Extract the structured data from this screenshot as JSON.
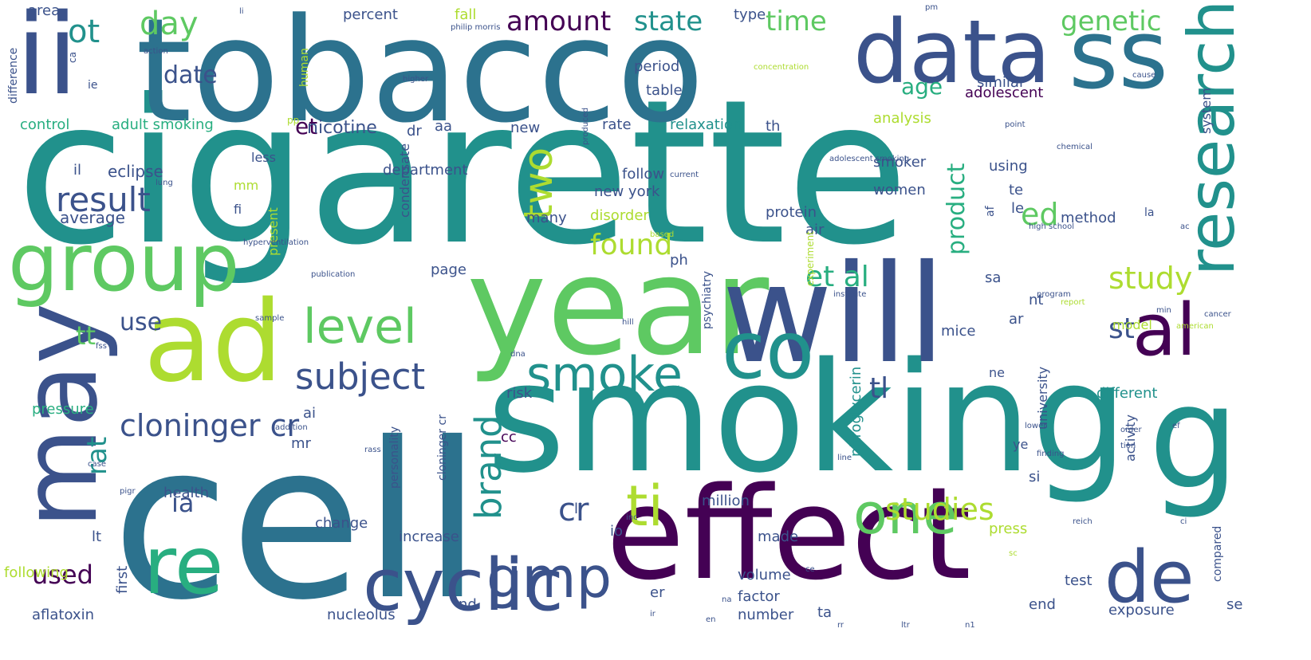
{
  "palette": {
    "dark_purple": "#440154",
    "indigo": "#472d7b",
    "slate_blue": "#3b528b",
    "steel_blue": "#2c728e",
    "teal": "#21918c",
    "green_teal": "#28ae80",
    "green": "#5ec962",
    "lime": "#addc30",
    "yellow": "#fde725"
  },
  "words": [
    {
      "text": "cigarette",
      "color": "#21918c",
      "orientation": "horizontal"
    },
    {
      "text": "cell",
      "color": "#2c728e",
      "orientation": "horizontal"
    },
    {
      "text": "smoking",
      "color": "#21918c",
      "orientation": "horizontal"
    },
    {
      "text": "tobacco",
      "color": "#2c728e",
      "orientation": "horizontal"
    },
    {
      "text": "effect",
      "color": "#440154",
      "orientation": "horizontal"
    },
    {
      "text": "year",
      "color": "#5ec962",
      "orientation": "horizontal"
    },
    {
      "text": "will",
      "color": "#3b528b",
      "orientation": "horizontal"
    },
    {
      "text": "ii",
      "color": "#3b528b",
      "orientation": "horizontal"
    },
    {
      "text": "ad",
      "color": "#addc30",
      "orientation": "horizontal"
    },
    {
      "text": "data",
      "color": "#3b528b",
      "orientation": "horizontal"
    },
    {
      "text": "ss",
      "color": "#2c728e",
      "orientation": "horizontal"
    },
    {
      "text": "may",
      "color": "#3b528b",
      "orientation": "vertical"
    },
    {
      "text": "group",
      "color": "#5ec962",
      "orientation": "horizontal"
    },
    {
      "text": "co",
      "color": "#21918c",
      "orientation": "horizontal"
    },
    {
      "text": "re",
      "color": "#28ae80",
      "orientation": "horizontal"
    },
    {
      "text": "cyclic",
      "color": "#3b528b",
      "orientation": "horizontal"
    },
    {
      "text": "de",
      "color": "#3b528b",
      "orientation": "horizontal"
    },
    {
      "text": "al",
      "color": "#440154",
      "orientation": "horizontal"
    },
    {
      "text": "g",
      "color": "#21918c",
      "orientation": "horizontal"
    },
    {
      "text": "research",
      "color": "#21918c",
      "orientation": "vertical"
    },
    {
      "text": "smoke",
      "color": "#21918c",
      "orientation": "horizontal"
    },
    {
      "text": "level",
      "color": "#5ec962",
      "orientation": "horizontal"
    },
    {
      "text": "one",
      "color": "#5ec962",
      "orientation": "horizontal"
    },
    {
      "text": "ti",
      "color": "#addc30",
      "orientation": "horizontal"
    },
    {
      "text": "gmp",
      "color": "#3b528b",
      "orientation": "horizontal"
    },
    {
      "text": "two",
      "color": "#addc30",
      "orientation": "vertical"
    },
    {
      "text": "subject",
      "color": "#3b528b",
      "orientation": "horizontal"
    },
    {
      "text": "brand",
      "color": "#21918c",
      "orientation": "vertical"
    },
    {
      "text": "result",
      "color": "#3b528b",
      "orientation": "horizontal"
    },
    {
      "text": "cloninger cr",
      "color": "#3b528b",
      "orientation": "horizontal"
    },
    {
      "text": "studies",
      "color": "#addc30",
      "orientation": "horizontal"
    },
    {
      "text": "study",
      "color": "#addc30",
      "orientation": "horizontal"
    },
    {
      "text": "et al",
      "color": "#28ae80",
      "orientation": "horizontal"
    },
    {
      "text": "st",
      "color": "#3b528b",
      "orientation": "horizontal"
    },
    {
      "text": "tl",
      "color": "#3b528b",
      "orientation": "horizontal"
    },
    {
      "text": "ed",
      "color": "#5ec962",
      "orientation": "horizontal"
    },
    {
      "text": "found",
      "color": "#addc30",
      "orientation": "horizontal"
    },
    {
      "text": "product",
      "color": "#28ae80",
      "orientation": "vertical"
    },
    {
      "text": "genetic",
      "color": "#5ec962",
      "orientation": "horizontal"
    },
    {
      "text": "amount",
      "color": "#440154",
      "orientation": "horizontal"
    },
    {
      "text": "state",
      "color": "#21918c",
      "orientation": "horizontal"
    },
    {
      "text": "time",
      "color": "#5ec962",
      "orientation": "horizontal"
    },
    {
      "text": "day",
      "color": "#5ec962",
      "orientation": "horizontal"
    },
    {
      "text": "ot",
      "color": "#21918c",
      "orientation": "horizontal"
    },
    {
      "text": "date",
      "color": "#3b528b",
      "orientation": "horizontal"
    },
    {
      "text": "age",
      "color": "#28ae80",
      "orientation": "horizontal"
    },
    {
      "text": "et",
      "color": "#440154",
      "orientation": "horizontal"
    },
    {
      "text": "use",
      "color": "#3b528b",
      "orientation": "horizontal"
    },
    {
      "text": "tt",
      "color": "#5ec962",
      "orientation": "horizontal"
    },
    {
      "text": "rat",
      "color": "#21918c",
      "orientation": "vertical"
    },
    {
      "text": "ia",
      "color": "#3b528b",
      "orientation": "horizontal"
    },
    {
      "text": "cr",
      "color": "#3b528b",
      "orientation": "horizontal"
    },
    {
      "text": "used",
      "color": "#440154",
      "orientation": "horizontal"
    },
    {
      "text": "nicotine",
      "color": "#3b528b",
      "orientation": "horizontal"
    },
    {
      "text": "adult smoking",
      "color": "#28ae80",
      "orientation": "horizontal"
    },
    {
      "text": "control",
      "color": "#28ae80",
      "orientation": "horizontal"
    },
    {
      "text": "eclipse",
      "color": "#3b528b",
      "orientation": "horizontal"
    },
    {
      "text": "average",
      "color": "#3b528b",
      "orientation": "horizontal"
    },
    {
      "text": "area",
      "color": "#3b528b",
      "orientation": "horizontal"
    },
    {
      "text": "percent",
      "color": "#3b528b",
      "orientation": "horizontal"
    },
    {
      "text": "fall",
      "color": "#addc30",
      "orientation": "horizontal"
    },
    {
      "text": "type",
      "color": "#3b528b",
      "orientation": "horizontal"
    },
    {
      "text": "similar",
      "color": "#3b528b",
      "orientation": "horizontal"
    },
    {
      "text": "period",
      "color": "#3b528b",
      "orientation": "horizontal"
    },
    {
      "text": "table",
      "color": "#3b528b",
      "orientation": "horizontal"
    },
    {
      "text": "adolescent",
      "color": "#440154",
      "orientation": "horizontal"
    },
    {
      "text": "rate",
      "color": "#3b528b",
      "orientation": "horizontal"
    },
    {
      "text": "relaxation",
      "color": "#21918c",
      "orientation": "horizontal"
    },
    {
      "text": "analysis",
      "color": "#addc30",
      "orientation": "horizontal"
    },
    {
      "text": "new",
      "color": "#3b528b",
      "orientation": "horizontal"
    },
    {
      "text": "aa",
      "color": "#3b528b",
      "orientation": "horizontal"
    },
    {
      "text": "dr",
      "color": "#3b528b",
      "orientation": "horizontal"
    },
    {
      "text": "th",
      "color": "#3b528b",
      "orientation": "horizontal"
    },
    {
      "text": "department",
      "color": "#3b528b",
      "orientation": "horizontal"
    },
    {
      "text": "follow",
      "color": "#3b528b",
      "orientation": "horizontal"
    },
    {
      "text": "new york",
      "color": "#3b528b",
      "orientation": "horizontal"
    },
    {
      "text": "smoker",
      "color": "#3b528b",
      "orientation": "horizontal"
    },
    {
      "text": "women",
      "color": "#3b528b",
      "orientation": "horizontal"
    },
    {
      "text": "using",
      "color": "#3b528b",
      "orientation": "horizontal"
    },
    {
      "text": "te",
      "color": "#3b528b",
      "orientation": "horizontal"
    },
    {
      "text": "le",
      "color": "#3b528b",
      "orientation": "horizontal"
    },
    {
      "text": "protein",
      "color": "#3b528b",
      "orientation": "horizontal"
    },
    {
      "text": "method",
      "color": "#3b528b",
      "orientation": "horizontal"
    },
    {
      "text": "disorder",
      "color": "#addc30",
      "orientation": "horizontal"
    },
    {
      "text": "many",
      "color": "#3b528b",
      "orientation": "horizontal"
    },
    {
      "text": "ph",
      "color": "#3b528b",
      "orientation": "horizontal"
    },
    {
      "text": "less",
      "color": "#3b528b",
      "orientation": "horizontal"
    },
    {
      "text": "il",
      "color": "#3b528b",
      "orientation": "horizontal"
    },
    {
      "text": "mm",
      "color": "#addc30",
      "orientation": "horizontal"
    },
    {
      "text": "fi",
      "color": "#3b528b",
      "orientation": "horizontal"
    },
    {
      "text": "condensate",
      "color": "#3b528b",
      "orientation": "vertical"
    },
    {
      "text": "present",
      "color": "#addc30",
      "orientation": "vertical"
    },
    {
      "text": "air",
      "color": "#3b528b",
      "orientation": "horizontal"
    },
    {
      "text": "page",
      "color": "#3b528b",
      "orientation": "horizontal"
    },
    {
      "text": "psychiatry",
      "color": "#3b528b",
      "orientation": "vertical"
    },
    {
      "text": "experiment",
      "color": "#addc30",
      "orientation": "vertical"
    },
    {
      "text": "nt",
      "color": "#3b528b",
      "orientation": "horizontal"
    },
    {
      "text": "ar",
      "color": "#3b528b",
      "orientation": "horizontal"
    },
    {
      "text": "mice",
      "color": "#3b528b",
      "orientation": "horizontal"
    },
    {
      "text": "model",
      "color": "#addc30",
      "orientation": "horizontal"
    },
    {
      "text": "sa",
      "color": "#3b528b",
      "orientation": "horizontal"
    },
    {
      "text": "pressure",
      "color": "#28ae80",
      "orientation": "horizontal"
    },
    {
      "text": "ai",
      "color": "#3b528b",
      "orientation": "horizontal"
    },
    {
      "text": "mr",
      "color": "#3b528b",
      "orientation": "horizontal"
    },
    {
      "text": "risk",
      "color": "#3b528b",
      "orientation": "horizontal"
    },
    {
      "text": "nitroglycerin",
      "color": "#21918c",
      "orientation": "vertical"
    },
    {
      "text": "different",
      "color": "#21918c",
      "orientation": "horizontal"
    },
    {
      "text": "university",
      "color": "#3b528b",
      "orientation": "vertical"
    },
    {
      "text": "activity",
      "color": "#3b528b",
      "orientation": "vertical"
    },
    {
      "text": "ne",
      "color": "#3b528b",
      "orientation": "horizontal"
    },
    {
      "text": "si",
      "color": "#3b528b",
      "orientation": "horizontal"
    },
    {
      "text": "ye",
      "color": "#3b528b",
      "orientation": "horizontal"
    },
    {
      "text": "cc",
      "color": "#440154",
      "orientation": "horizontal"
    },
    {
      "text": "cloninger cr",
      "color": "#3b528b",
      "orientation": "vertical"
    },
    {
      "text": "personality",
      "color": "#3b528b",
      "orientation": "vertical"
    },
    {
      "text": "health",
      "color": "#3b528b",
      "orientation": "horizontal"
    },
    {
      "text": "lt",
      "color": "#3b528b",
      "orientation": "horizontal"
    },
    {
      "text": "million",
      "color": "#3b528b",
      "orientation": "horizontal"
    },
    {
      "text": "change",
      "color": "#3b528b",
      "orientation": "horizontal"
    },
    {
      "text": "increase",
      "color": "#3b528b",
      "orientation": "horizontal"
    },
    {
      "text": "press",
      "color": "#addc30",
      "orientation": "horizontal"
    },
    {
      "text": "made",
      "color": "#3b528b",
      "orientation": "horizontal"
    },
    {
      "text": "io",
      "color": "#3b528b",
      "orientation": "horizontal"
    },
    {
      "text": "ll",
      "color": "#3b528b",
      "orientation": "horizontal"
    },
    {
      "text": "following",
      "color": "#addc30",
      "orientation": "horizontal"
    },
    {
      "text": "first",
      "color": "#3b528b",
      "orientation": "vertical"
    },
    {
      "text": "aflatoxin",
      "color": "#3b528b",
      "orientation": "horizontal"
    },
    {
      "text": "nucleolus",
      "color": "#3b528b",
      "orientation": "horizontal"
    },
    {
      "text": "nd",
      "color": "#3b528b",
      "orientation": "horizontal"
    },
    {
      "text": "volume",
      "color": "#3b528b",
      "orientation": "horizontal"
    },
    {
      "text": "factor",
      "color": "#3b528b",
      "orientation": "horizontal"
    },
    {
      "text": "number",
      "color": "#3b528b",
      "orientation": "horizontal"
    },
    {
      "text": "ta",
      "color": "#3b528b",
      "orientation": "horizontal"
    },
    {
      "text": "er",
      "color": "#3b528b",
      "orientation": "horizontal"
    },
    {
      "text": "test",
      "color": "#3b528b",
      "orientation": "horizontal"
    },
    {
      "text": "end",
      "color": "#3b528b",
      "orientation": "horizontal"
    },
    {
      "text": "exposure",
      "color": "#3b528b",
      "orientation": "horizontal"
    },
    {
      "text": "compared",
      "color": "#3b528b",
      "orientation": "vertical"
    },
    {
      "text": "se",
      "color": "#3b528b",
      "orientation": "horizontal"
    },
    {
      "text": "difference",
      "color": "#3b528b",
      "orientation": "vertical"
    },
    {
      "text": "human",
      "color": "#addc30",
      "orientation": "vertical"
    },
    {
      "text": "system",
      "color": "#3b528b",
      "orientation": "vertical"
    },
    {
      "text": "la",
      "color": "#3b528b",
      "orientation": "horizontal"
    },
    {
      "text": "af",
      "color": "#3b528b",
      "orientation": "vertical"
    },
    {
      "text": "pp",
      "color": "#addc30",
      "orientation": "horizontal"
    },
    {
      "text": "ca",
      "color": "#3b528b",
      "orientation": "vertical"
    },
    {
      "text": "ie",
      "color": "#3b528b",
      "orientation": "horizontal"
    },
    {
      "text": "li",
      "color": "#3b528b",
      "orientation": "horizontal"
    },
    {
      "text": "pm",
      "color": "#3b528b",
      "orientation": "horizontal"
    },
    {
      "text": "philip morris",
      "color": "#3b528b",
      "orientation": "horizontal"
    },
    {
      "text": "action",
      "color": "#3b528b",
      "orientation": "horizontal"
    },
    {
      "text": "concentration",
      "color": "#addc30",
      "orientation": "horizontal"
    },
    {
      "text": "higher",
      "color": "#3b528b",
      "orientation": "horizontal"
    },
    {
      "text": "produced",
      "color": "#3b528b",
      "orientation": "vertical"
    },
    {
      "text": "cause",
      "color": "#3b528b",
      "orientation": "horizontal"
    },
    {
      "text": "point",
      "color": "#3b528b",
      "orientation": "horizontal"
    },
    {
      "text": "adolescent smoking",
      "color": "#3b528b",
      "orientation": "horizontal"
    },
    {
      "text": "chemical",
      "color": "#3b528b",
      "orientation": "horizontal"
    },
    {
      "text": "lung",
      "color": "#3b528b",
      "orientation": "horizontal"
    },
    {
      "text": "current",
      "color": "#3b528b",
      "orientation": "horizontal"
    },
    {
      "text": "based",
      "color": "#addc30",
      "orientation": "horizontal"
    },
    {
      "text": "high school",
      "color": "#3b528b",
      "orientation": "horizontal"
    },
    {
      "text": "publication",
      "color": "#3b528b",
      "orientation": "horizontal"
    },
    {
      "text": "institute",
      "color": "#3b528b",
      "orientation": "horizontal"
    },
    {
      "text": "report",
      "color": "#addc30",
      "orientation": "horizontal"
    },
    {
      "text": "program",
      "color": "#3b528b",
      "orientation": "horizontal"
    },
    {
      "text": "cancer",
      "color": "#3b528b",
      "orientation": "horizontal"
    },
    {
      "text": "american",
      "color": "#addc30",
      "orientation": "horizontal"
    },
    {
      "text": "min",
      "color": "#3b528b",
      "orientation": "horizontal"
    },
    {
      "text": "hill",
      "color": "#3b528b",
      "orientation": "horizontal"
    },
    {
      "text": "sample",
      "color": "#3b528b",
      "orientation": "horizontal"
    },
    {
      "text": "fss",
      "color": "#3b528b",
      "orientation": "horizontal"
    },
    {
      "text": "dna",
      "color": "#3b528b",
      "orientation": "horizontal"
    },
    {
      "text": "hyperventilation",
      "color": "#3b528b",
      "orientation": "horizontal"
    },
    {
      "text": "case",
      "color": "#3b528b",
      "orientation": "horizontal"
    },
    {
      "text": "pigr",
      "color": "#3b528b",
      "orientation": "horizontal"
    },
    {
      "text": "addition",
      "color": "#3b528b",
      "orientation": "horizontal"
    },
    {
      "text": "rass",
      "color": "#3b528b",
      "orientation": "horizontal"
    },
    {
      "text": "lower",
      "color": "#3b528b",
      "orientation": "horizontal"
    },
    {
      "text": "order",
      "color": "#3b528b",
      "orientation": "horizontal"
    },
    {
      "text": "tion",
      "color": "#3b528b",
      "orientation": "horizontal"
    },
    {
      "text": "finding",
      "color": "#3b528b",
      "orientation": "horizontal"
    },
    {
      "text": "line",
      "color": "#3b528b",
      "orientation": "horizontal"
    },
    {
      "text": "inc",
      "color": "#3b528b",
      "orientation": "horizontal"
    },
    {
      "text": "reich",
      "color": "#3b528b",
      "orientation": "horizontal"
    },
    {
      "text": "na",
      "color": "#3b528b",
      "orientation": "horizontal"
    },
    {
      "text": "en",
      "color": "#3b528b",
      "orientation": "horizontal"
    },
    {
      "text": "ce",
      "color": "#3b528b",
      "orientation": "horizontal"
    },
    {
      "text": "ir",
      "color": "#3b528b",
      "orientation": "horizontal"
    },
    {
      "text": "sc",
      "color": "#addc30",
      "orientation": "horizontal"
    },
    {
      "text": "ci",
      "color": "#3b528b",
      "orientation": "horizontal"
    },
    {
      "text": "ef",
      "color": "#3b528b",
      "orientation": "horizontal"
    },
    {
      "text": "ac",
      "color": "#3b528b",
      "orientation": "horizontal"
    },
    {
      "text": "rr",
      "color": "#3b528b",
      "orientation": "horizontal"
    },
    {
      "text": "ltr",
      "color": "#3b528b",
      "orientation": "horizontal"
    },
    {
      "text": "n1",
      "color": "#3b528b",
      "orientation": "horizontal"
    }
  ]
}
